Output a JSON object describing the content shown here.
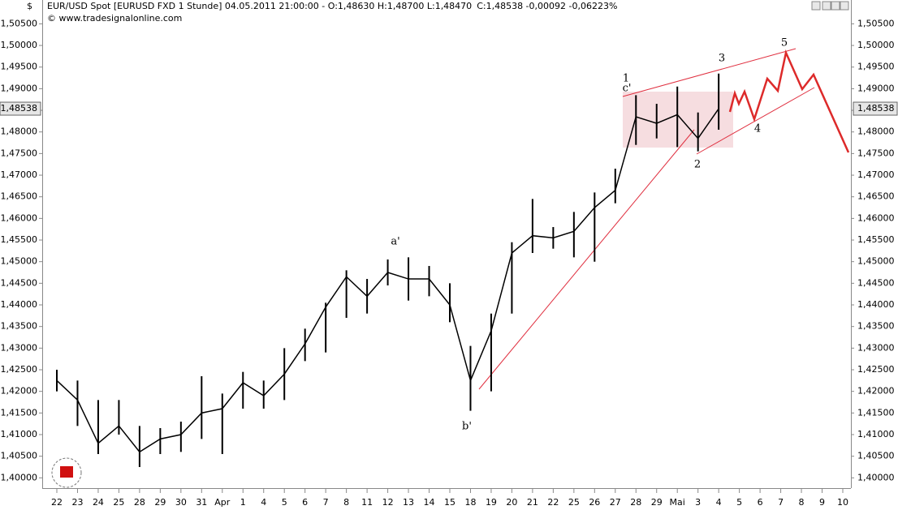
{
  "chart_data": {
    "type": "line",
    "currency": "$",
    "title": "EUR/USD Spot [EURUSD FXD  1 Stunde] 04.05.2011 21:00:00 - O:1,48630 H:1,48700 L:1,48470",
    "subtitle": "C:1,48538 -0,00092 -0,06223%",
    "subtitle_color": "#d01010",
    "copyright": "© www.tradesignalonline.com",
    "color": "#000000",
    "categories": [
      "22",
      "23",
      "24",
      "25",
      "28",
      "29",
      "30",
      "31",
      "Apr",
      "1",
      "4",
      "5",
      "6",
      "7",
      "8",
      "11",
      "12",
      "13",
      "14",
      "15",
      "18",
      "19",
      "20",
      "21",
      "22",
      "25",
      "26",
      "27",
      "28",
      "29",
      "Mai",
      "3",
      "4",
      "5",
      "6",
      "7",
      "8",
      "9",
      "10"
    ],
    "values": [
      1.4225,
      1.418,
      1.408,
      1.412,
      1.406,
      1.409,
      1.41,
      1.415,
      1.416,
      1.422,
      1.419,
      1.424,
      1.431,
      1.4395,
      1.4465,
      1.442,
      1.4475,
      1.446,
      1.446,
      1.44,
      1.4225,
      1.434,
      1.452,
      1.456,
      1.4555,
      1.457,
      1.4625,
      1.4665,
      1.4835,
      1.482,
      1.484,
      1.4785,
      1.48538,
      null,
      null,
      null,
      null,
      null,
      null
    ],
    "high": [
      1.425,
      1.4225,
      1.418,
      1.418,
      1.412,
      1.4115,
      1.413,
      1.4235,
      1.4195,
      1.4245,
      1.4225,
      1.43,
      1.4345,
      1.4405,
      1.448,
      1.446,
      1.4505,
      1.451,
      1.449,
      1.445,
      1.4305,
      1.438,
      1.4545,
      1.4645,
      1.458,
      1.4615,
      1.466,
      1.4715,
      1.4885,
      1.4865,
      1.4905,
      1.4845,
      1.4935,
      null,
      null,
      null,
      null,
      null,
      null
    ],
    "low": [
      1.42,
      1.412,
      1.4055,
      1.41,
      1.4025,
      1.4055,
      1.406,
      1.409,
      1.4055,
      1.416,
      1.416,
      1.418,
      1.427,
      1.429,
      1.437,
      1.438,
      1.4445,
      1.441,
      1.442,
      1.436,
      1.4155,
      1.42,
      1.438,
      1.452,
      1.453,
      1.451,
      1.45,
      1.4635,
      1.477,
      1.4785,
      1.4765,
      1.4755,
      1.4805,
      null,
      null,
      null,
      null,
      null,
      null
    ],
    "ylim": [
      1.398,
      1.5077
    ],
    "yticks": [
      {
        "value": 1.4,
        "label": "1,40000"
      },
      {
        "value": 1.405,
        "label": "1,40500"
      },
      {
        "value": 1.41,
        "label": "1,41000"
      },
      {
        "value": 1.415,
        "label": "1,41500"
      },
      {
        "value": 1.42,
        "label": "1,42000"
      },
      {
        "value": 1.425,
        "label": "1,42500"
      },
      {
        "value": 1.43,
        "label": "1,43000"
      },
      {
        "value": 1.435,
        "label": "1,43500"
      },
      {
        "value": 1.44,
        "label": "1,44000"
      },
      {
        "value": 1.445,
        "label": "1,44500"
      },
      {
        "value": 1.45,
        "label": "1,45000"
      },
      {
        "value": 1.455,
        "label": "1,45500"
      },
      {
        "value": 1.46,
        "label": "1,46000"
      },
      {
        "value": 1.465,
        "label": "1,46500"
      },
      {
        "value": 1.47,
        "label": "1,47000"
      },
      {
        "value": 1.475,
        "label": "1,47500"
      },
      {
        "value": 1.48,
        "label": "1,48000"
      },
      {
        "value": 1.485,
        "label": "1,48500"
      },
      {
        "value": 1.49,
        "label": "1,49000"
      },
      {
        "value": 1.495,
        "label": "1,49500"
      },
      {
        "value": 1.5,
        "label": "1,50000"
      },
      {
        "value": 1.505,
        "label": "1,50500"
      }
    ],
    "last_price": {
      "value": 1.48538,
      "label": "1,48538"
    },
    "annotations": [
      {
        "text": "1",
        "color": "#cc0033"
      },
      {
        "text": "c'",
        "color": "#000066"
      },
      {
        "text": "3",
        "color": "#cc0033"
      },
      {
        "text": "5",
        "color": "#cc0033"
      },
      {
        "text": "4",
        "color": "#cc0033"
      },
      {
        "text": "2",
        "color": "#cc0033"
      },
      {
        "text": "a'",
        "color": "#000066"
      },
      {
        "text": "b'",
        "color": "#000066"
      }
    ]
  }
}
